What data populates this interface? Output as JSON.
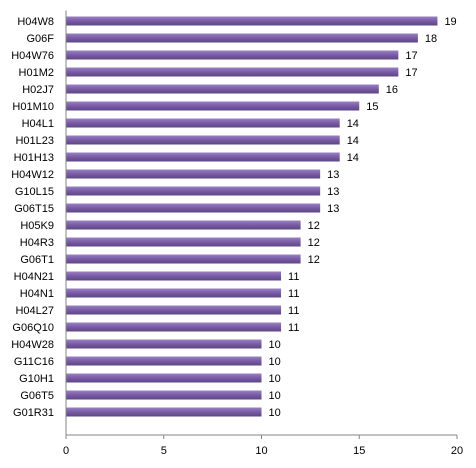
{
  "chart_data": {
    "type": "bar",
    "orientation": "horizontal",
    "categories": [
      "H04W8",
      "G06F",
      "H04W76",
      "H01M2",
      "H02J7",
      "H01M10",
      "H04L1",
      "H01L23",
      "H01H13",
      "H04W12",
      "G10L15",
      "G06T15",
      "H05K9",
      "H04R3",
      "G06T1",
      "H04N21",
      "H04N1",
      "H04L27",
      "G06Q10",
      "H04W28",
      "G11C16",
      "G10H1",
      "G06T5",
      "G01R31"
    ],
    "values": [
      19,
      18,
      17,
      17,
      16,
      15,
      14,
      14,
      14,
      13,
      13,
      13,
      12,
      12,
      12,
      11,
      11,
      11,
      11,
      10,
      10,
      10,
      10,
      10
    ],
    "xlim": [
      0,
      20
    ],
    "xticks": [
      0,
      5,
      10,
      15,
      20
    ],
    "data_labels": true,
    "grid": false,
    "legend": "none",
    "colors": {
      "bar": "#7b5ea7",
      "bar_light": "#9a80c4",
      "bar_dark": "#5e4585",
      "axis": "#868686"
    }
  }
}
